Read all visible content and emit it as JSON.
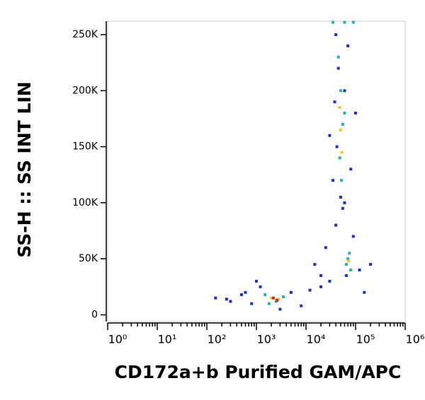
{
  "chart_data": {
    "type": "scatter",
    "x_label": "CD172a+b Purified GAM/APC",
    "y_label": "SS-H :: SS INT LIN",
    "log_x": true,
    "xlim": [
      1,
      1000000
    ],
    "xticks": [
      {
        "value": 1,
        "label": "10⁰"
      },
      {
        "value": 10,
        "label": "10¹"
      },
      {
        "value": 100,
        "label": "10²"
      },
      {
        "value": 1000,
        "label": "10³"
      },
      {
        "value": 10000,
        "label": "10⁴"
      },
      {
        "value": 100000,
        "label": "10⁵"
      },
      {
        "value": 1000000,
        "label": "10⁶"
      }
    ],
    "ylim": [
      -6000,
      262000
    ],
    "yticks": [
      0,
      {
        "value": 50000,
        "label": "50K"
      },
      {
        "value": 100000,
        "label": "100K"
      },
      {
        "value": 150000,
        "label": "150K"
      },
      {
        "value": 200000,
        "label": "200K"
      },
      {
        "value": 250000,
        "label": "250K"
      }
    ],
    "series": [
      {
        "color": "#1a2cf0",
        "x": [
          150,
          300,
          500,
          800,
          1200,
          5000,
          8000,
          12000,
          20000,
          30000,
          25000,
          40000,
          60000,
          90000,
          120000,
          150000,
          35000,
          45000,
          70000,
          100000,
          30000,
          40000,
          60000,
          80000,
          20000,
          15000,
          3000,
          600,
          250,
          1000,
          200000,
          50000,
          55000,
          65000,
          38000,
          42000
        ],
        "y": [
          15000,
          12000,
          18000,
          10000,
          25000,
          20000,
          8000,
          22000,
          25000,
          30000,
          60000,
          80000,
          100000,
          70000,
          40000,
          20000,
          120000,
          220000,
          240000,
          180000,
          160000,
          250000,
          200000,
          130000,
          35000,
          45000,
          5000,
          20000,
          14000,
          30000,
          45000,
          105000,
          95000,
          35000,
          190000,
          150000
        ]
      },
      {
        "color": "#1fb8a0",
        "x": [
          1500,
          2500,
          3500,
          1800,
          45000,
          50000,
          55000,
          48000,
          52000,
          60000,
          70000,
          80000,
          65000,
          75000,
          35000,
          60000,
          90000
        ],
        "y": [
          18000,
          12000,
          16000,
          10000,
          230000,
          200000,
          170000,
          140000,
          120000,
          180000,
          50000,
          40000,
          45000,
          55000,
          261000,
          261000,
          261000
        ]
      },
      {
        "color": "#e8d020",
        "x": [
          2000,
          2800,
          50000,
          48000,
          53000,
          72000
        ],
        "y": [
          15000,
          14000,
          165000,
          185000,
          145000,
          48000
        ]
      },
      {
        "color": "#e8201a",
        "x": [
          2200,
          2600
        ],
        "y": [
          15000,
          13000
        ]
      }
    ]
  }
}
